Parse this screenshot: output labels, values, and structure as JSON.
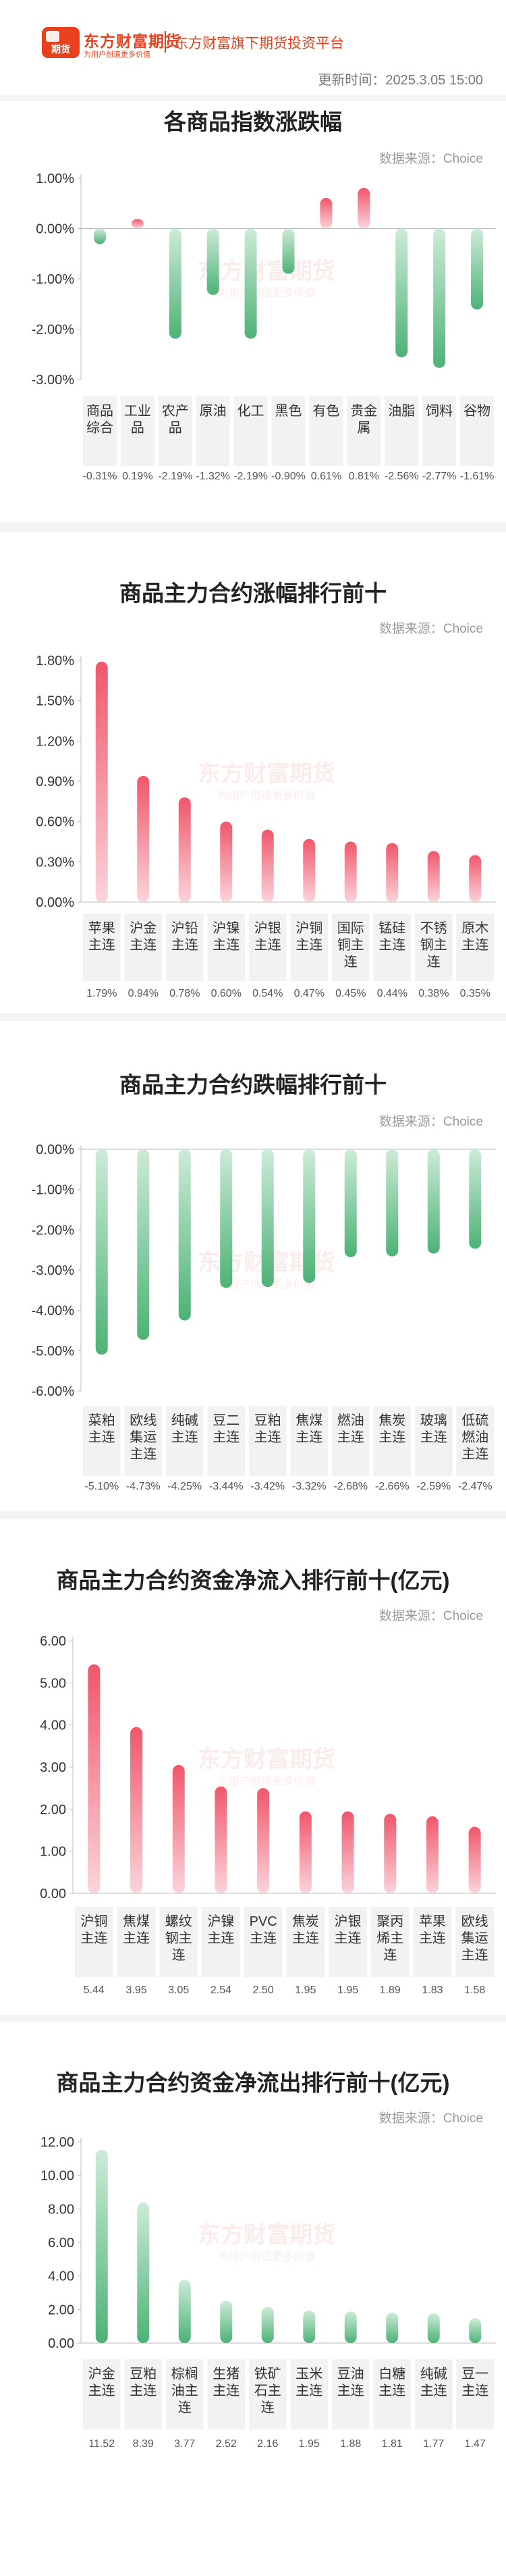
{
  "header": {
    "brand_name": "东方财富期货",
    "brand_slogan": "为用户创造更多价值",
    "tagline": "东方财富旗下期货投资平台",
    "update_time": "更新时间：2025.3.05 15:00",
    "logo_text": "期货"
  },
  "colors": {
    "up": "#f0566b",
    "down": "#4db276",
    "accent": "#e9401d"
  },
  "watermark": {
    "line1": "东方财富期货",
    "line2": "为用户创造更多价值"
  },
  "charts": [
    {
      "title": "各商品指数涨跌幅",
      "source": "数据来源：Choice",
      "chart_data": {
        "type": "bar",
        "categories": [
          "商品综合",
          "工业品",
          "农产品",
          "原油",
          "化工",
          "黑色",
          "有色",
          "贵金属",
          "油脂",
          "饲料",
          "谷物"
        ],
        "values": [
          -0.31,
          0.19,
          -2.19,
          -1.32,
          -2.19,
          -0.9,
          0.61,
          0.81,
          -2.56,
          -2.77,
          -1.61
        ],
        "value_labels": [
          "-0.31%",
          "0.19%",
          "-2.19%",
          "-1.32%",
          "-2.19%",
          "-0.90%",
          "0.61%",
          "0.81%",
          "-2.56%",
          "-2.77%",
          "-1.61%"
        ],
        "yticks": [
          1,
          0,
          -1,
          -2,
          -3
        ],
        "ytick_labels": [
          "1.00%",
          "0.00%",
          "-1.00%",
          "-2.00%",
          "-3.00%"
        ],
        "ylim": [
          -3,
          1
        ],
        "grid": false
      }
    },
    {
      "title": "商品主力合约涨幅排行前十",
      "source": "数据来源：Choice",
      "chart_data": {
        "type": "bar",
        "categories": [
          "苹果主连",
          "沪金主连",
          "沪铅主连",
          "沪镍主连",
          "沪银主连",
          "沪铜主连",
          "国际铜主连",
          "锰硅主连",
          "不锈钢主连",
          "原木主连"
        ],
        "values": [
          1.79,
          0.94,
          0.78,
          0.6,
          0.54,
          0.47,
          0.45,
          0.44,
          0.38,
          0.35
        ],
        "value_labels": [
          "1.79%",
          "0.94%",
          "0.78%",
          "0.60%",
          "0.54%",
          "0.47%",
          "0.45%",
          "0.44%",
          "0.38%",
          "0.35%"
        ],
        "yticks": [
          1.8,
          1.5,
          1.2,
          0.9,
          0.6,
          0.3,
          0
        ],
        "ytick_labels": [
          "1.80%",
          "1.50%",
          "1.20%",
          "0.90%",
          "0.60%",
          "0.30%",
          "0.00%"
        ],
        "ylim": [
          0,
          1.8
        ],
        "grid": false
      }
    },
    {
      "title": "商品主力合约跌幅排行前十",
      "source": "数据来源：Choice",
      "chart_data": {
        "type": "bar",
        "categories": [
          "菜粕主连",
          "欧线集运主连",
          "纯碱主连",
          "豆二主连",
          "豆粕主连",
          "焦煤主连",
          "燃油主连",
          "焦炭主连",
          "玻璃主连",
          "低硫燃油主连"
        ],
        "values": [
          -5.1,
          -4.73,
          -4.25,
          -3.44,
          -3.42,
          -3.32,
          -2.68,
          -2.66,
          -2.59,
          -2.47
        ],
        "value_labels": [
          "-5.10%",
          "-4.73%",
          "-4.25%",
          "-3.44%",
          "-3.42%",
          "-3.32%",
          "-2.68%",
          "-2.66%",
          "-2.59%",
          "-2.47%"
        ],
        "yticks": [
          0,
          -1,
          -2,
          -3,
          -4,
          -5,
          -6
        ],
        "ytick_labels": [
          "0.00%",
          "-1.00%",
          "-2.00%",
          "-3.00%",
          "-4.00%",
          "-5.00%",
          "-6.00%"
        ],
        "ylim": [
          -6,
          0
        ],
        "grid": false
      }
    },
    {
      "title": "商品主力合约资金净流入排行前十(亿元)",
      "source": "数据来源：Choice",
      "chart_data": {
        "type": "bar",
        "categories": [
          "沪铜主连",
          "焦煤主连",
          "螺纹钢主连",
          "沪镍主连",
          "PVC主连",
          "焦炭主连",
          "沪银主连",
          "聚丙烯主连",
          "苹果主连",
          "欧线集运主连"
        ],
        "values": [
          5.44,
          3.95,
          3.05,
          2.54,
          2.5,
          1.95,
          1.95,
          1.89,
          1.83,
          1.58
        ],
        "value_labels": [
          "5.44",
          "3.95",
          "3.05",
          "2.54",
          "2.50",
          "1.95",
          "1.95",
          "1.89",
          "1.83",
          "1.58"
        ],
        "yticks": [
          6,
          5,
          4,
          3,
          2,
          1,
          0
        ],
        "ytick_labels": [
          "6.00",
          "5.00",
          "4.00",
          "3.00",
          "2.00",
          "1.00",
          "0.00"
        ],
        "ylim": [
          0,
          6
        ],
        "grid": false
      }
    },
    {
      "title": "商品主力合约资金净流出排行前十(亿元)",
      "source": "数据来源：Choice",
      "chart_data": {
        "type": "bar",
        "categories": [
          "沪金主连",
          "豆粕主连",
          "棕榈油主连",
          "生猪主连",
          "铁矿石主连",
          "玉米主连",
          "豆油主连",
          "白糖主连",
          "纯碱主连",
          "豆一主连"
        ],
        "values": [
          11.52,
          8.39,
          3.77,
          2.52,
          2.16,
          1.95,
          1.88,
          1.81,
          1.77,
          1.47
        ],
        "value_labels": [
          "11.52",
          "8.39",
          "3.77",
          "2.52",
          "2.16",
          "1.95",
          "1.88",
          "1.81",
          "1.77",
          "1.47"
        ],
        "yticks": [
          12,
          10,
          8,
          6,
          4,
          2,
          0
        ],
        "ytick_labels": [
          "12.00",
          "10.00",
          "8.00",
          "6.00",
          "4.00",
          "2.00",
          "0.00"
        ],
        "ylim": [
          0,
          12
        ],
        "grid": false,
        "bar_color": "down"
      }
    }
  ]
}
